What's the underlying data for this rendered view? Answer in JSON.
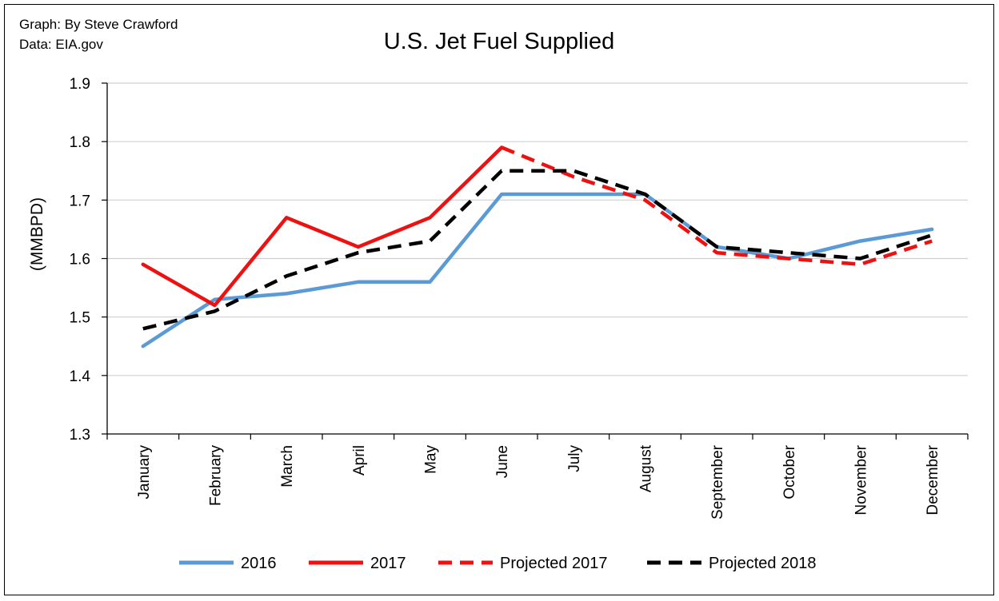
{
  "credit": {
    "author": "Graph: By Steve Crawford",
    "source": "Data: EIA.gov"
  },
  "chart_data": {
    "type": "line",
    "title": "U.S. Jet Fuel Supplied",
    "xlabel": "",
    "ylabel": "(MMBPD)",
    "ylim": [
      1.3,
      1.9
    ],
    "yticks": [
      "1.3",
      "1.4",
      "1.5",
      "1.6",
      "1.7",
      "1.8",
      "1.9"
    ],
    "grid": true,
    "legend_position": "bottom",
    "categories": [
      "January",
      "February",
      "March",
      "April",
      "May",
      "June",
      "July",
      "August",
      "September",
      "October",
      "November",
      "December"
    ],
    "series": [
      {
        "name": "2016",
        "color": "#5b9bd5",
        "style": "solid",
        "values": [
          1.45,
          1.53,
          1.54,
          1.56,
          1.56,
          1.71,
          1.71,
          1.71,
          1.62,
          1.6,
          1.63,
          1.65
        ]
      },
      {
        "name": "2017",
        "color": "#ee1111",
        "style": "solid",
        "values": [
          1.59,
          1.52,
          1.67,
          1.62,
          1.67,
          1.79,
          null,
          null,
          null,
          null,
          null,
          null
        ]
      },
      {
        "name": "Projected 2017",
        "color": "#ee1111",
        "style": "dashed",
        "values": [
          null,
          null,
          null,
          null,
          null,
          1.79,
          1.74,
          1.7,
          1.61,
          1.6,
          1.59,
          1.63
        ]
      },
      {
        "name": "Projected 2018",
        "color": "#000000",
        "style": "dashed",
        "values": [
          1.48,
          1.51,
          1.57,
          1.61,
          1.63,
          1.75,
          1.75,
          1.71,
          1.62,
          1.61,
          1.6,
          1.64
        ]
      }
    ]
  }
}
